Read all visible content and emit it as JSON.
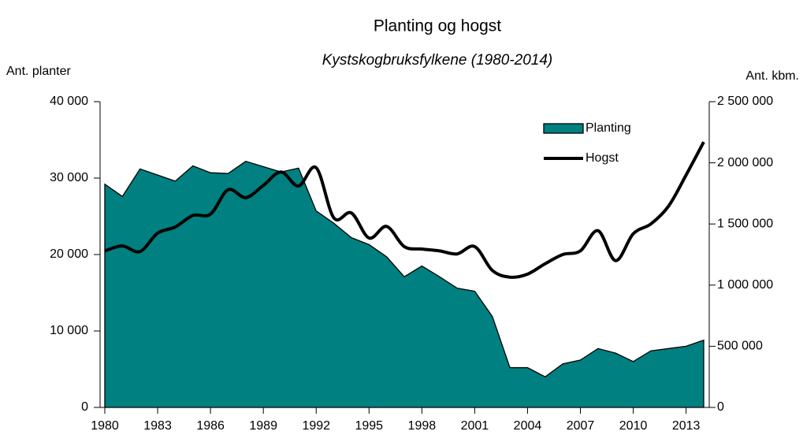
{
  "chart_data": {
    "type": "area-line",
    "title": "Planting og hogst",
    "subtitle": "Kystskogbruksfylkene (1980-2014)",
    "ylabel": "Ant. planter",
    "y2label": "Ant. kbm.",
    "x": [
      1980,
      1981,
      1982,
      1983,
      1984,
      1985,
      1986,
      1987,
      1988,
      1989,
      1990,
      1991,
      1992,
      1993,
      1994,
      1995,
      1996,
      1997,
      1998,
      1999,
      2000,
      2001,
      2002,
      2003,
      2004,
      2005,
      2006,
      2007,
      2008,
      2009,
      2010,
      2011,
      2012,
      2013,
      2014
    ],
    "xlim": [
      1980,
      2014
    ],
    "xticks": [
      1980,
      1983,
      1986,
      1989,
      1992,
      1995,
      1998,
      2001,
      2004,
      2007,
      2010,
      2013
    ],
    "ylim": [
      0,
      40000
    ],
    "yticks": [
      0,
      {
        "value": 10000,
        "label": "10 000"
      },
      {
        "value": 20000,
        "label": "20 000"
      },
      {
        "value": 30000,
        "label": "30 000"
      },
      {
        "value": 40000,
        "label": "40 000"
      }
    ],
    "y2lim": [
      0,
      2500000
    ],
    "y2ticks": [
      0,
      {
        "value": 500000,
        "label": "500 000"
      },
      {
        "value": 1000000,
        "label": "1 000 000"
      },
      {
        "value": 1500000,
        "label": "1 500 000"
      },
      {
        "value": 2000000,
        "label": "2 000 000"
      },
      {
        "value": 2500000,
        "label": "2 500 000"
      }
    ],
    "series": [
      {
        "name": "Planting",
        "type": "area",
        "color": "#008080",
        "values": [
          29200,
          27600,
          31200,
          30400,
          29600,
          31600,
          30700,
          30600,
          32200,
          31500,
          30800,
          31300,
          25700,
          24100,
          22200,
          21300,
          19700,
          17100,
          18500,
          17100,
          15600,
          15200,
          11900,
          5200,
          5200,
          4000,
          5700,
          6200,
          7700,
          7100,
          6000,
          7400,
          7700,
          8000,
          8800
        ]
      },
      {
        "name": "Hogst",
        "type": "line",
        "axis": "y2",
        "color": "#000000",
        "values": [
          1280000,
          1320000,
          1275000,
          1425000,
          1475000,
          1570000,
          1580000,
          1780000,
          1715000,
          1815000,
          1925000,
          1810000,
          1960000,
          1550000,
          1590000,
          1385000,
          1480000,
          1315000,
          1295000,
          1280000,
          1255000,
          1315000,
          1120000,
          1065000,
          1090000,
          1175000,
          1250000,
          1280000,
          1445000,
          1200000,
          1420000,
          1500000,
          1645000,
          1900000,
          2170000
        ]
      }
    ]
  }
}
